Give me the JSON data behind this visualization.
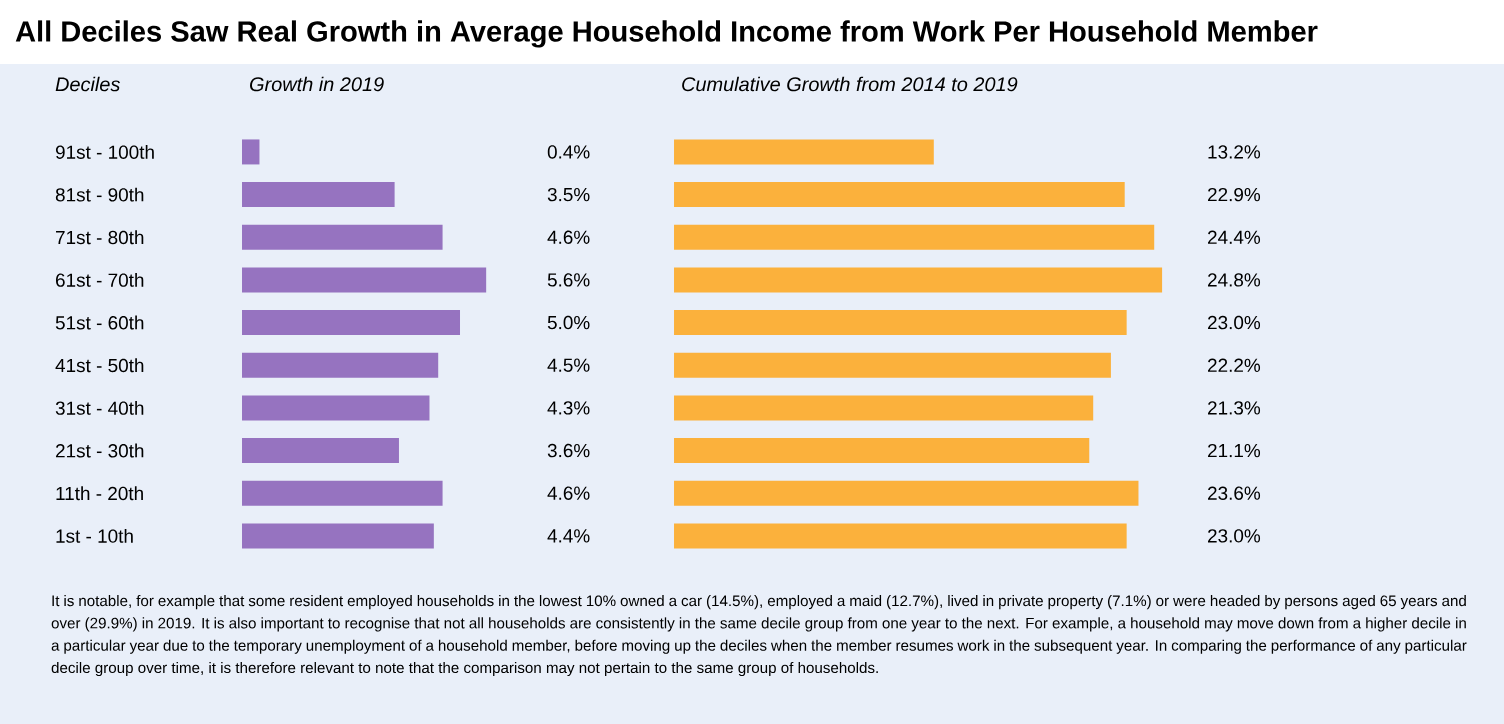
{
  "chart_data": [
    {
      "type": "bar",
      "orientation": "horizontal",
      "title": "All Deciles Saw Real Growth in Average Household Income from Work Per Household Member",
      "subtitle": "Growth in 2019",
      "ylabel": "Deciles",
      "tick_labels": "y",
      "categories": [
        "91st - 100th",
        "81st - 90th",
        "71st - 80th",
        "61st - 70th",
        "51st - 60th",
        "41st - 50th",
        "31st - 40th",
        "21st - 30th",
        "11th - 20th",
        "1st - 10th"
      ],
      "values": [
        0.4,
        3.5,
        4.6,
        5.6,
        5.0,
        4.5,
        4.3,
        3.6,
        4.6,
        4.4
      ],
      "value_labels": [
        "0.4%",
        "3.5%",
        "4.6%",
        "5.6%",
        "5.0%",
        "4.5%",
        "4.3%",
        "3.6%",
        "4.6%",
        "4.4%"
      ],
      "color": "#9673c0",
      "annotations": [
        "It is notable, for example that some resident employed households in the lowest 10% owned a car (14.5%), employed a maid (12.7%), lived in private property (7.1%) or were headed by persons aged 65 years and over (29.9%) in 2019. It is also important to recognise that not all households are consistently in the same decile group from one year to the next. For example, a household may move down from a higher decile in a particular year due to the temporary unemployment of a household member, before moving up the deciles when the member resumes work in the subsequent year. In comparing the performance of any particular decile group over time, it is therefore relevant to note that the comparison may not pertain to the same group of households."
      ]
    },
    {
      "type": "bar",
      "orientation": "horizontal",
      "subtitle": "Cumulative Growth from 2014 to 2019",
      "tick_labels": false,
      "categories": [
        null,
        null,
        null,
        null,
        null,
        null,
        null,
        null,
        null,
        null
      ],
      "values": [
        13.2,
        22.9,
        24.4,
        24.8,
        23.0,
        22.2,
        21.3,
        21.1,
        23.6,
        23.0
      ],
      "value_labels": [
        "13.2%",
        "22.9%",
        "24.4%",
        "24.8%",
        "23.0%",
        "22.2%",
        "21.3%",
        "21.1%",
        "23.6%",
        "23.0%"
      ],
      "color": "#fbb13c"
    }
  ]
}
